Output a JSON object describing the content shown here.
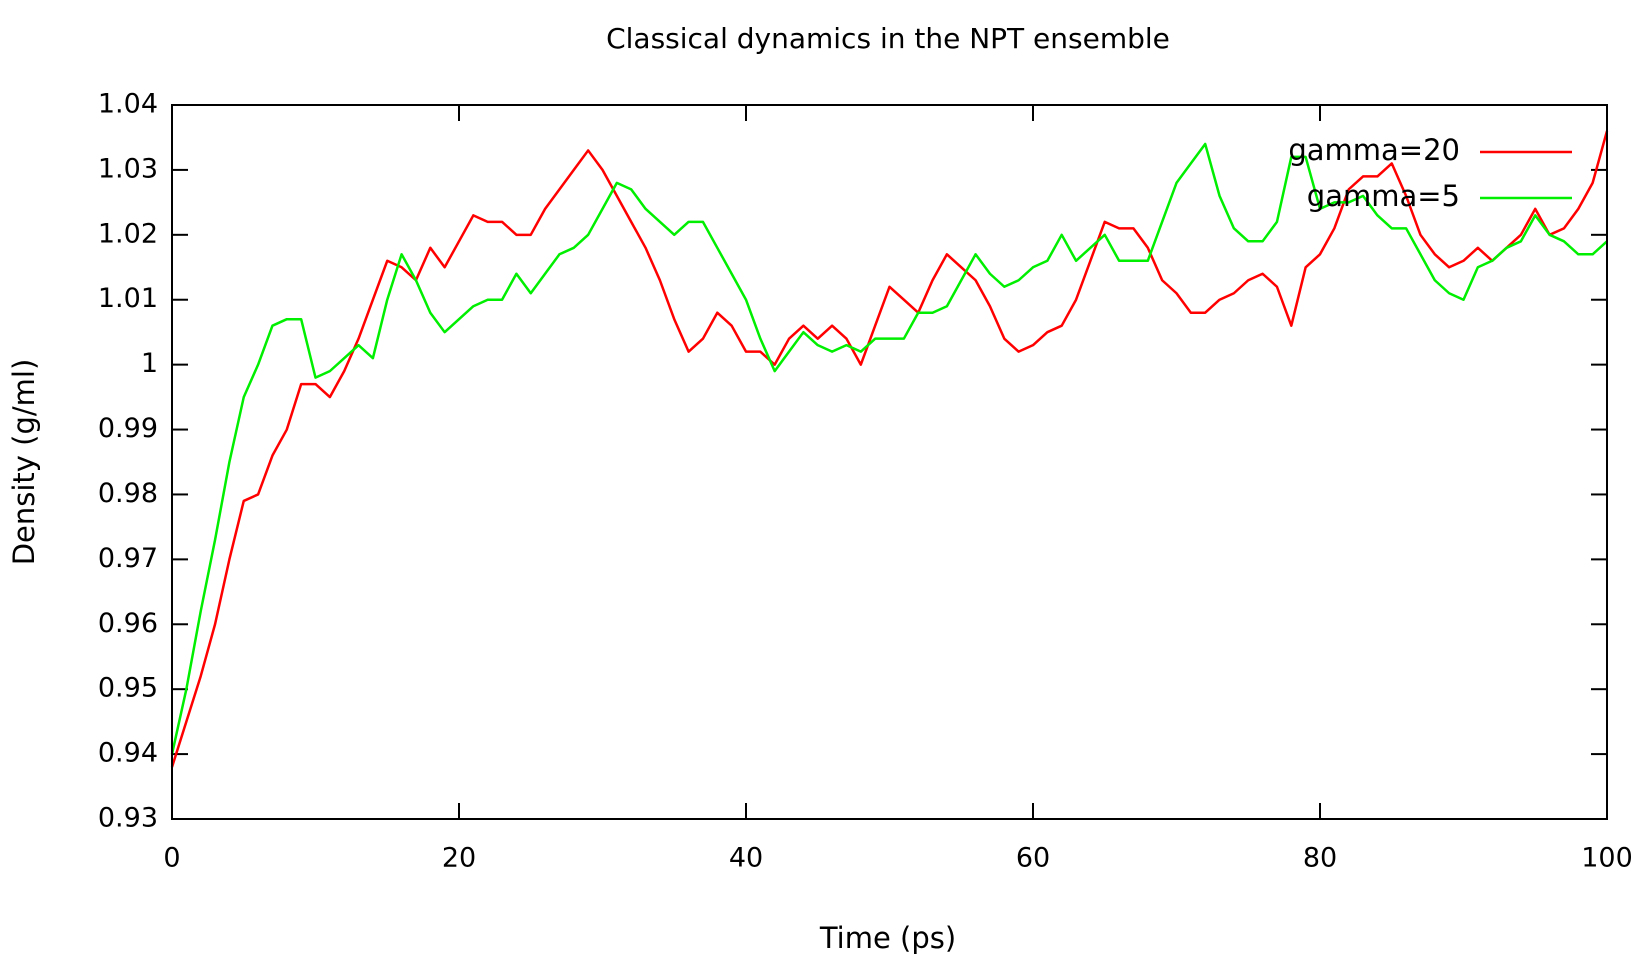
{
  "chart_data": {
    "type": "line",
    "title": "Classical dynamics in the NPT ensemble",
    "x_label": "Time (ps)",
    "y_label": "Density (g/ml)",
    "xlim": [
      0,
      100
    ],
    "ylim": [
      0.93,
      1.04
    ],
    "xticks": [
      0,
      20,
      40,
      60,
      80,
      100
    ],
    "yticks": [
      0.93,
      0.94,
      0.95,
      0.96,
      0.97,
      0.98,
      0.99,
      1,
      1.01,
      1.02,
      1.03,
      1.04
    ],
    "legend": "top-right",
    "x": [
      0,
      1,
      2,
      3,
      4,
      5,
      6,
      7,
      8,
      9,
      10,
      11,
      12,
      13,
      14,
      15,
      16,
      17,
      18,
      19,
      20,
      21,
      22,
      23,
      24,
      25,
      26,
      27,
      28,
      29,
      30,
      31,
      32,
      33,
      34,
      35,
      36,
      37,
      38,
      39,
      40,
      41,
      42,
      43,
      44,
      45,
      46,
      47,
      48,
      49,
      50,
      51,
      52,
      53,
      54,
      55,
      56,
      57,
      58,
      59,
      60,
      61,
      62,
      63,
      64,
      65,
      66,
      67,
      68,
      69,
      70,
      71,
      72,
      73,
      74,
      75,
      76,
      77,
      78,
      79,
      80,
      81,
      82,
      83,
      84,
      85,
      86,
      87,
      88,
      89,
      90,
      91,
      92,
      93,
      94,
      95,
      96,
      97,
      98,
      99,
      100
    ],
    "series": [
      {
        "name": "gamma=20",
        "color": "#ff0000",
        "values": [
          0.938,
          0.945,
          0.952,
          0.96,
          0.97,
          0.979,
          0.98,
          0.986,
          0.99,
          0.997,
          0.997,
          0.995,
          0.999,
          1.004,
          1.01,
          1.016,
          1.015,
          1.013,
          1.018,
          1.015,
          1.019,
          1.023,
          1.022,
          1.022,
          1.02,
          1.02,
          1.024,
          1.027,
          1.03,
          1.033,
          1.03,
          1.026,
          1.022,
          1.018,
          1.013,
          1.007,
          1.002,
          1.004,
          1.008,
          1.006,
          1.002,
          1.002,
          1.0,
          1.004,
          1.006,
          1.004,
          1.006,
          1.004,
          1.0,
          1.006,
          1.012,
          1.01,
          1.008,
          1.013,
          1.017,
          1.015,
          1.013,
          1.009,
          1.004,
          1.002,
          1.003,
          1.005,
          1.006,
          1.01,
          1.016,
          1.022,
          1.021,
          1.021,
          1.018,
          1.013,
          1.011,
          1.008,
          1.008,
          1.01,
          1.011,
          1.013,
          1.014,
          1.012,
          1.006,
          1.015,
          1.017,
          1.021,
          1.027,
          1.029,
          1.029,
          1.031,
          1.026,
          1.02,
          1.017,
          1.015,
          1.016,
          1.018,
          1.016,
          1.018,
          1.02,
          1.024,
          1.02,
          1.021,
          1.024,
          1.028,
          1.036
        ]
      },
      {
        "name": "gamma=5",
        "color": "#00ee00",
        "values": [
          0.94,
          0.95,
          0.962,
          0.973,
          0.985,
          0.995,
          1.0,
          1.006,
          1.007,
          1.007,
          0.998,
          0.999,
          1.001,
          1.003,
          1.001,
          1.01,
          1.017,
          1.013,
          1.008,
          1.005,
          1.007,
          1.009,
          1.01,
          1.01,
          1.014,
          1.011,
          1.014,
          1.017,
          1.018,
          1.02,
          1.024,
          1.028,
          1.027,
          1.024,
          1.022,
          1.02,
          1.022,
          1.022,
          1.018,
          1.014,
          1.01,
          1.004,
          0.999,
          1.002,
          1.005,
          1.003,
          1.002,
          1.003,
          1.002,
          1.004,
          1.004,
          1.004,
          1.008,
          1.008,
          1.009,
          1.013,
          1.017,
          1.014,
          1.012,
          1.013,
          1.015,
          1.016,
          1.02,
          1.016,
          1.018,
          1.02,
          1.016,
          1.016,
          1.016,
          1.022,
          1.028,
          1.031,
          1.034,
          1.026,
          1.021,
          1.019,
          1.019,
          1.022,
          1.032,
          1.032,
          1.024,
          1.025,
          1.025,
          1.026,
          1.023,
          1.021,
          1.021,
          1.017,
          1.013,
          1.011,
          1.01,
          1.015,
          1.016,
          1.018,
          1.019,
          1.023,
          1.02,
          1.019,
          1.017,
          1.017,
          1.019
        ]
      }
    ]
  }
}
